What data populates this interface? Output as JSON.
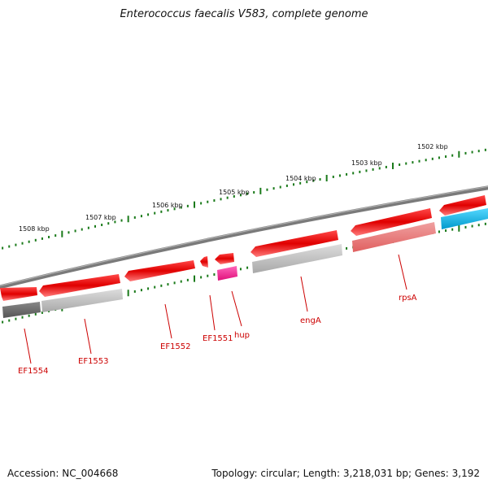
{
  "title": "Enterococcus faecalis V583, complete genome",
  "footer": {
    "accession": "Accession: NC_004668",
    "topology": "Topology: circular; Length: 3,218,031 bp; Genes: 3,192"
  },
  "scale": {
    "labels": [
      "1508 kbp",
      "1507 kbp",
      "1506 kbp",
      "1505 kbp",
      "1504 kbp",
      "1503 kbp",
      "1502 kbp"
    ]
  },
  "genes": [
    {
      "label": "EF1554",
      "strand": "reverse",
      "color": "#ee1111",
      "cog_color": "#666666"
    },
    {
      "label": "EF1553",
      "strand": "reverse",
      "color": "#ee1111",
      "cog_color": "#c0c0c0"
    },
    {
      "label": "EF1552",
      "strand": "reverse",
      "color": "#ee1111",
      "cog_color": ""
    },
    {
      "label": "EF1551",
      "strand": "reverse",
      "color": "#ee1111",
      "cog_color": ""
    },
    {
      "label": "hup",
      "strand": "reverse",
      "color": "#ee1111",
      "cog_color": "#ff3399"
    },
    {
      "label": "engA",
      "strand": "reverse",
      "color": "#ee1111",
      "cog_color": "#c0c0c0"
    },
    {
      "label": "rpsA",
      "strand": "reverse",
      "color": "#ee1111",
      "cog_color": "#f08080"
    },
    {
      "label": "",
      "strand": "reverse",
      "color": "#ee1111",
      "cog_color": "#1ab8ea"
    }
  ],
  "colors": {
    "backbone": "#777777",
    "ticks": "#1a7a1a",
    "gene_label": "#cc0000"
  }
}
